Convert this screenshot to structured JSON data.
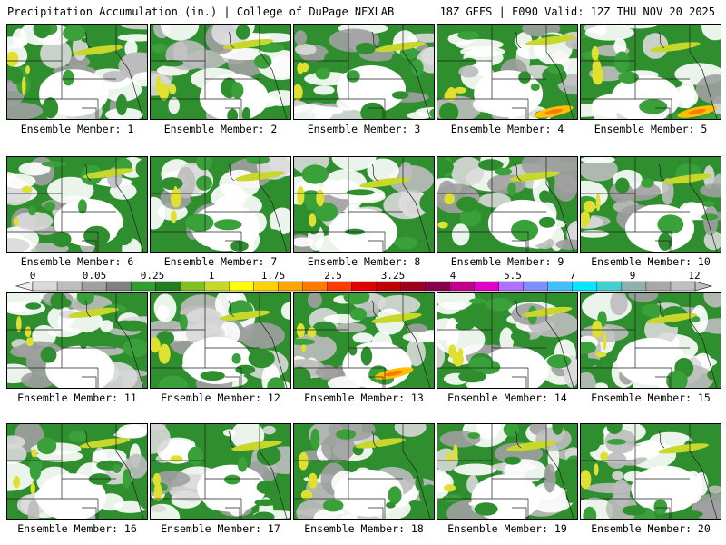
{
  "header": {
    "title": "Precipitation Accumulation (in.) | College of DuPage NEXLAB",
    "valid": "18Z GEFS | F090 Valid: 12Z THU NOV 20 2025"
  },
  "members": [
    "Ensemble Member: 1",
    "Ensemble Member: 2",
    "Ensemble Member: 3",
    "Ensemble Member: 4",
    "Ensemble Member: 5",
    "Ensemble Member: 6",
    "Ensemble Member: 7",
    "Ensemble Member: 8",
    "Ensemble Member: 9",
    "Ensemble Member: 10",
    "Ensemble Member: 11",
    "Ensemble Member: 12",
    "Ensemble Member: 13",
    "Ensemble Member: 14",
    "Ensemble Member: 15",
    "Ensemble Member: 16",
    "Ensemble Member: 17",
    "Ensemble Member: 18",
    "Ensemble Member: 19",
    "Ensemble Member: 20"
  ],
  "colorbar": {
    "labels": [
      "0",
      "0.05",
      "0.25",
      "1",
      "1.75",
      "2.5",
      "3.25",
      "4",
      "5.5",
      "7",
      "9",
      "12"
    ],
    "colors": [
      "#d9d9d9",
      "#bdbdbd",
      "#a0a0a0",
      "#808080",
      "#2f9e2f",
      "#1f7f1f",
      "#80c020",
      "#c8d82a",
      "#ffff00",
      "#ffd200",
      "#ffa500",
      "#ff7a00",
      "#ff3b00",
      "#e00000",
      "#c00000",
      "#a00020",
      "#880048",
      "#c0008a",
      "#e000c8",
      "#b070ff",
      "#7f8fff",
      "#40c0ff",
      "#00e8ff",
      "#40d0d0",
      "#8fb0b0",
      "#a8a8a8",
      "#bfbfbf"
    ]
  }
}
